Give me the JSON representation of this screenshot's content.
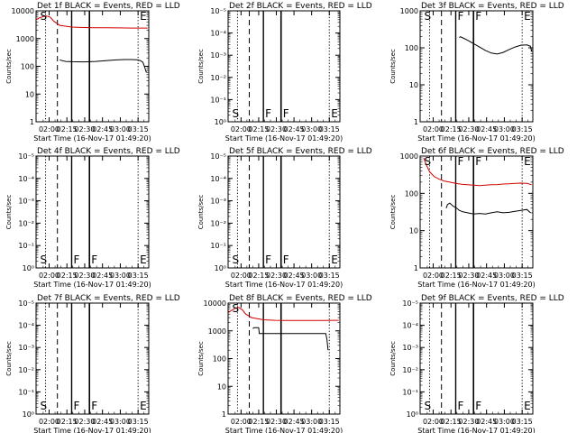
{
  "chart_data": [
    {
      "type": "line",
      "title": "Det 1f BLACK = Events, RED = LLD",
      "xlabel": "Start Time (16-Nov-17 01:49:20)",
      "ylabel": "Counts/sec",
      "xticks": [
        "02:00",
        "02:15",
        "02:30",
        "02:45",
        "03:00",
        "03:15"
      ],
      "yticks": [
        "1",
        "10",
        "100",
        "1000",
        "10000"
      ],
      "ylog": true,
      "ylim": [
        1,
        10000
      ],
      "markers": {
        "S": true,
        "F1": false,
        "F2": false,
        "E": true
      },
      "series": [
        {
          "color": "#d00000",
          "kind": "lld",
          "x": [
            0,
            3,
            6,
            9,
            12,
            15,
            20,
            30,
            40,
            50,
            60,
            70,
            80,
            90,
            94
          ],
          "y": [
            4800,
            5600,
            6200,
            6500,
            5900,
            4200,
            3000,
            2600,
            2500,
            2450,
            2450,
            2420,
            2400,
            2400,
            2400
          ]
        },
        {
          "color": "#000000",
          "kind": "events",
          "x": [
            20,
            22,
            25,
            30,
            35,
            40,
            45,
            50,
            55,
            60,
            65,
            70,
            75,
            80,
            85,
            88,
            90,
            91,
            92,
            93
          ],
          "y": [
            170,
            160,
            150,
            146,
            145,
            144,
            146,
            150,
            155,
            162,
            168,
            172,
            175,
            176,
            172,
            160,
            140,
            110,
            80,
            60
          ]
        }
      ]
    },
    {
      "type": "line",
      "title": "Det 2f BLACK = Events, RED = LLD",
      "xlabel": "Start Time (16-Nov-17 01:49:20)",
      "ylabel": "Counts/sec",
      "xticks": [
        "02:00",
        "02:15",
        "02:30",
        "02:45",
        "03:00",
        "03:15"
      ],
      "yticks": [
        "10⁰",
        "10⁻¹",
        "10⁻²",
        "10⁻³",
        "10⁻⁴",
        "10⁻⁵"
      ],
      "ylog": true,
      "ylim": [
        1,
        100000
      ],
      "markers": {
        "S": true,
        "F1": true,
        "F2": true,
        "E": true
      },
      "series": []
    },
    {
      "type": "line",
      "title": "Det 3f BLACK = Events, RED = LLD",
      "xlabel": "Start Time (16-Nov-17 01:49:20)",
      "ylabel": "Counts/sec",
      "xticks": [
        "02:00",
        "02:15",
        "02:30",
        "02:45",
        "03:00",
        "03:15"
      ],
      "yticks": [
        "1",
        "10",
        "100",
        "1000"
      ],
      "ylog": true,
      "ylim": [
        1,
        1000
      ],
      "markers": {
        "S": true,
        "F1": true,
        "F2": true,
        "E": true
      },
      "series": [
        {
          "color": "#000000",
          "kind": "events",
          "x": [
            33,
            34,
            36,
            40,
            45,
            50,
            55,
            60,
            65,
            70,
            75,
            80,
            85,
            90,
            93,
            94
          ],
          "y": [
            190,
            200,
            185,
            160,
            130,
            105,
            85,
            72,
            68,
            75,
            90,
            105,
            118,
            120,
            110,
            80
          ]
        }
      ]
    },
    {
      "type": "line",
      "title": "Det 4f BLACK = Events, RED = LLD",
      "xlabel": "Start Time (16-Nov-17 01:49:20)",
      "ylabel": "Counts/sec",
      "xticks": [
        "02:00",
        "02:15",
        "02:30",
        "02:45",
        "03:00",
        "03:15"
      ],
      "yticks": [
        "10⁰",
        "10⁻¹",
        "10⁻²",
        "10⁻³",
        "10⁻⁴",
        "10⁻⁵"
      ],
      "ylog": true,
      "ylim": [
        1,
        100000
      ],
      "markers": {
        "S": true,
        "F1": true,
        "F2": true,
        "E": true
      },
      "series": []
    },
    {
      "type": "line",
      "title": "Det 5f BLACK = Events, RED = LLD",
      "xlabel": "Start Time (16-Nov-17 01:49:20)",
      "ylabel": "Counts/sec",
      "xticks": [
        "02:00",
        "02:15",
        "02:30",
        "02:45",
        "03:00",
        "03:15"
      ],
      "yticks": [
        "10⁰",
        "10⁻¹",
        "10⁻²",
        "10⁻³",
        "10⁻⁴",
        "10⁻⁵"
      ],
      "ylog": true,
      "ylim": [
        1,
        100000
      ],
      "markers": {
        "S": true,
        "F1": true,
        "F2": true,
        "E": true
      },
      "series": []
    },
    {
      "type": "line",
      "title": "Det 6f BLACK = Events, RED = LLD",
      "xlabel": "Start Time (16-Nov-17 01:49:20)",
      "ylabel": "Counts/sec",
      "xticks": [
        "02:00",
        "02:15",
        "02:30",
        "02:45",
        "03:00",
        "03:15"
      ],
      "yticks": [
        "1",
        "10",
        "100",
        "1000"
      ],
      "ylog": true,
      "ylim": [
        1,
        1000
      ],
      "markers": {
        "S": true,
        "F1": true,
        "F2": true,
        "E": true
      },
      "series": [
        {
          "color": "#d00000",
          "kind": "lld",
          "x": [
            3,
            5,
            8,
            12,
            16,
            20,
            25,
            30,
            35,
            40,
            45,
            50,
            55,
            60,
            65,
            70,
            75,
            80,
            85,
            90,
            94
          ],
          "y": [
            900,
            600,
            380,
            280,
            240,
            215,
            200,
            185,
            175,
            170,
            165,
            162,
            165,
            170,
            172,
            178,
            180,
            185,
            188,
            185,
            170
          ]
        },
        {
          "color": "#000000",
          "kind": "events",
          "x": [
            22,
            23,
            25,
            28,
            30,
            33,
            36,
            40,
            45,
            50,
            55,
            60,
            65,
            70,
            75,
            80,
            85,
            90,
            93
          ],
          "y": [
            40,
            50,
            55,
            45,
            42,
            35,
            32,
            30,
            28,
            29,
            28,
            30,
            32,
            30,
            31,
            33,
            35,
            37,
            30
          ]
        }
      ]
    },
    {
      "type": "line",
      "title": "Det 7f BLACK = Events, RED = LLD",
      "xlabel": "Start Time (16-Nov-17 01:49:20)",
      "ylabel": "Counts/sec",
      "xticks": [
        "02:00",
        "02:15",
        "02:30",
        "02:45",
        "03:00",
        "03:15"
      ],
      "yticks": [
        "10⁰",
        "10⁻¹",
        "10⁻²",
        "10⁻³",
        "10⁻⁴",
        "10⁻⁵"
      ],
      "ylog": true,
      "ylim": [
        1,
        100000
      ],
      "markers": {
        "S": true,
        "F1": true,
        "F2": true,
        "E": true
      },
      "series": []
    },
    {
      "type": "line",
      "title": "Det 8f BLACK = Events, RED = LLD",
      "xlabel": "Start Time (16-Nov-17 01:49:20)",
      "ylabel": "Counts/sec",
      "xticks": [
        "02:00",
        "02:15",
        "02:30",
        "02:45",
        "03:00",
        "03:15"
      ],
      "yticks": [
        "1",
        "10",
        "100",
        "1000",
        "10000"
      ],
      "ylog": true,
      "ylim": [
        1,
        10000
      ],
      "markers": {
        "S": true,
        "F1": false,
        "F2": false,
        "E": false
      },
      "series": [
        {
          "color": "#d00000",
          "kind": "lld",
          "x": [
            0,
            3,
            6,
            9,
            12,
            15,
            20,
            30,
            40,
            50,
            60,
            70,
            80,
            90,
            94
          ],
          "y": [
            4500,
            5500,
            6500,
            7000,
            5800,
            4000,
            3000,
            2500,
            2400,
            2380,
            2350,
            2360,
            2380,
            2400,
            2400
          ]
        },
        {
          "color": "#000000",
          "kind": "events",
          "x": [
            21,
            22,
            22.5,
            26,
            26.5,
            40,
            50,
            60,
            70,
            80,
            83,
            84,
            85
          ],
          "y": [
            1200,
            1300,
            1300,
            1300,
            800,
            800,
            800,
            800,
            800,
            800,
            800,
            500,
            200
          ]
        }
      ]
    },
    {
      "type": "line",
      "title": "Det 9f BLACK = Events, RED = LLD",
      "xlabel": "Start Time (16-Nov-17 01:49:20)",
      "ylabel": "Counts/sec",
      "xticks": [
        "02:00",
        "02:15",
        "02:30",
        "02:45",
        "03:00",
        "03:15"
      ],
      "yticks": [
        "10⁰",
        "10⁻¹",
        "10⁻²",
        "10⁻³",
        "10⁻⁴",
        "10⁻⁵"
      ],
      "ylog": true,
      "ylim": [
        1,
        100000
      ],
      "markers": {
        "S": true,
        "F1": true,
        "F2": true,
        "E": true
      },
      "series": []
    }
  ],
  "marker_labels": {
    "S": "S",
    "F": "F",
    "E": "E"
  },
  "vlines": {
    "start": 8,
    "dashed": 18,
    "solid1": 30,
    "solid2": 45,
    "dotted2": 86,
    "time_range": [
      0,
      95
    ]
  }
}
